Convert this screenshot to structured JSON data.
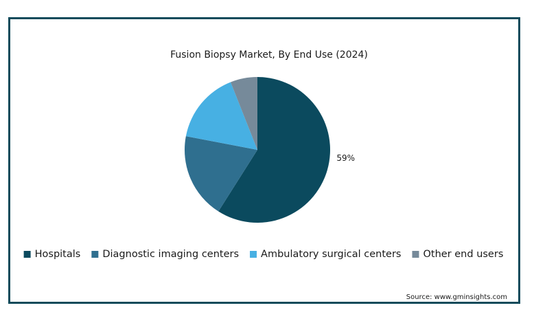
{
  "chart_data": {
    "type": "pie",
    "title": "Fusion Biopsy Market, By End Use (2024)",
    "categories": [
      "Hospitals",
      "Diagnostic imaging centers",
      "Ambulatory surgical centers",
      "Other end users"
    ],
    "values": [
      59,
      19,
      16,
      6
    ],
    "value_labels": [
      "59%",
      null,
      null,
      null
    ],
    "colors": [
      "#0b4a5e",
      "#2f6f8f",
      "#47b0e3",
      "#768a9a"
    ],
    "legend": "bottom",
    "source": "Source: www.gminsights.com"
  }
}
